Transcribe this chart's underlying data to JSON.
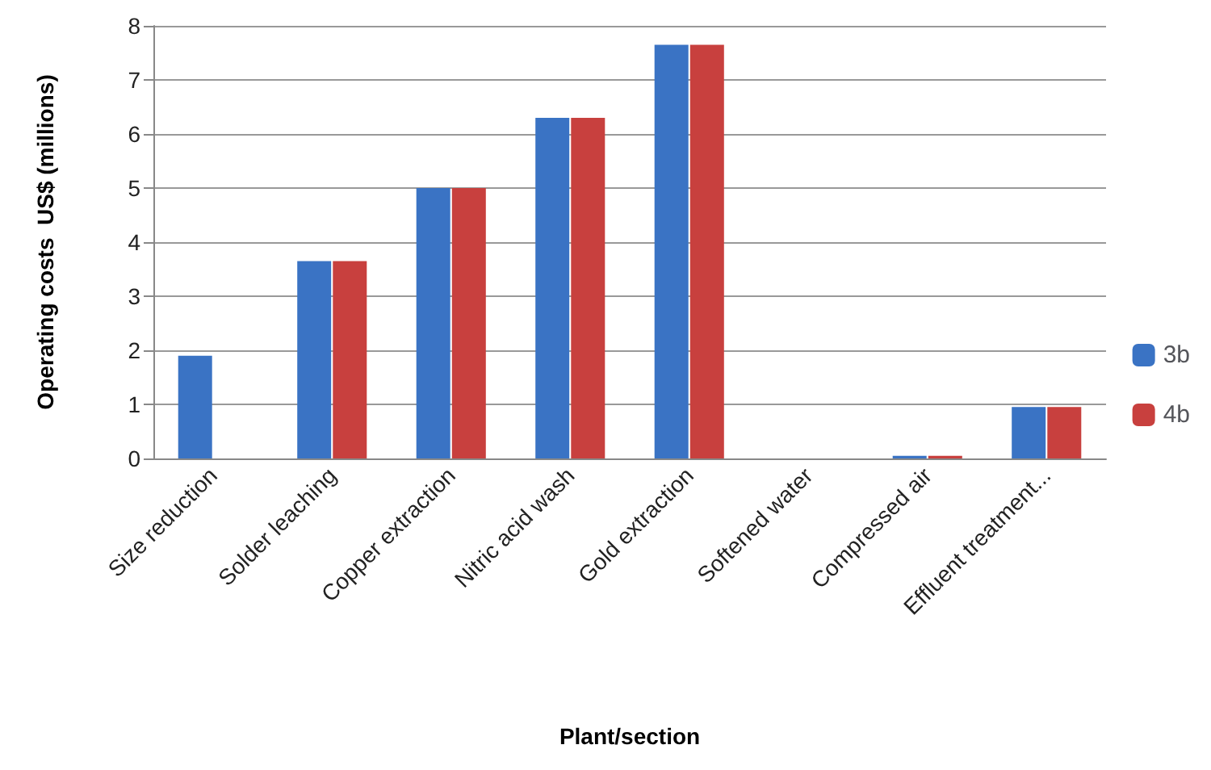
{
  "chart_data": {
    "type": "bar",
    "xlabel": "Plant/section",
    "ylabel": "Operating costs  US$ (millions)",
    "categories": [
      "Size reduction",
      "Solder leaching",
      "Copper extraction",
      "Nitric acid wash",
      "Gold extraction",
      "Softened water",
      "Compressed air",
      "Effluent treatment..."
    ],
    "series": [
      {
        "name": "3b",
        "color": "#3a73c4",
        "values": [
          1.9,
          3.65,
          5.0,
          6.3,
          7.65,
          0,
          0.05,
          0.95
        ]
      },
      {
        "name": "4b",
        "color": "#c8403e",
        "values": [
          0,
          3.65,
          5.0,
          6.3,
          7.65,
          0,
          0.05,
          0.95
        ]
      }
    ],
    "ylim": [
      0,
      8
    ],
    "yticks": [
      0,
      1,
      2,
      3,
      4,
      5,
      6,
      7,
      8
    ],
    "grid": "y",
    "legend": "right"
  }
}
